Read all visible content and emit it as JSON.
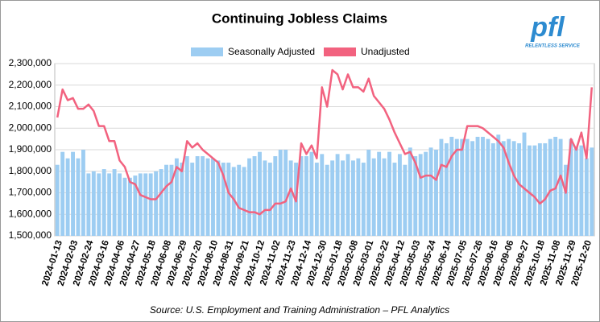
{
  "chart_data": {
    "type": "bar_line",
    "title": "Continuing Jobless Claims",
    "source": "Source: U.S. Employment and Training Administration – PFL Analytics",
    "logo": {
      "text": "pfl",
      "tagline": "RELENTLESS SERVICE"
    },
    "legend_position": "top",
    "grid": true,
    "categories": [
      "2024-01-13",
      null,
      null,
      "2024-02-03",
      null,
      null,
      "2024-02-24",
      null,
      null,
      "2024-03-16",
      null,
      null,
      "2024-04-06",
      null,
      null,
      "2024-04-27",
      null,
      null,
      "2024-05-18",
      null,
      null,
      "2024-06-08",
      null,
      null,
      "2024-06-29",
      null,
      null,
      "2024-07-20",
      null,
      null,
      "2024-08-10",
      null,
      null,
      "2024-08-31",
      null,
      null,
      "2024-09-21",
      null,
      null,
      "2024-10-12",
      null,
      null,
      "2024-11-02",
      null,
      null,
      "2024-11-23",
      null,
      null,
      "2024-12-14",
      null,
      null,
      "2024-12-30",
      null,
      null,
      "2025-01-18",
      null,
      null,
      "2025-02-08",
      null,
      null,
      "2025-03-01",
      null,
      null,
      "2025-03-22",
      null,
      null,
      "2025-04-12",
      null,
      null,
      "2025-05-03",
      null,
      null,
      "2025-05-24",
      null,
      null,
      "2025-06-14",
      null,
      null,
      "2025-07-05",
      null,
      null,
      "2025-07-26",
      null,
      null,
      "2025-08-16",
      null,
      null,
      "2025-09-06",
      null,
      null,
      "2025-09-27",
      null,
      null,
      "2025-10-18",
      null,
      null,
      "2025-11-08",
      null,
      null,
      "2025-11-29",
      null,
      null,
      "2025-12-20",
      null
    ],
    "series": [
      {
        "name": "Seasonally Adjusted",
        "type": "bar",
        "color": "#9dcdf2",
        "values": [
          1830000,
          1890000,
          1860000,
          1890000,
          1860000,
          1900000,
          1790000,
          1800000,
          1790000,
          1810000,
          1790000,
          1810000,
          1790000,
          1770000,
          1770000,
          1780000,
          1790000,
          1790000,
          1790000,
          1800000,
          1810000,
          1830000,
          1830000,
          1860000,
          1840000,
          1870000,
          1840000,
          1870000,
          1870000,
          1860000,
          1860000,
          1850000,
          1840000,
          1840000,
          1820000,
          1830000,
          1820000,
          1860000,
          1870000,
          1890000,
          1850000,
          1840000,
          1870000,
          1900000,
          1900000,
          1850000,
          1840000,
          1870000,
          1870000,
          1890000,
          1840000,
          1880000,
          1830000,
          1850000,
          1880000,
          1850000,
          1880000,
          1850000,
          1860000,
          1840000,
          1900000,
          1860000,
          1890000,
          1860000,
          1890000,
          1840000,
          1880000,
          1830000,
          1910000,
          1870000,
          1880000,
          1890000,
          1910000,
          1900000,
          1950000,
          1930000,
          1960000,
          1950000,
          1950000,
          1950000,
          1940000,
          1960000,
          1960000,
          1950000,
          1930000,
          1970000,
          1940000,
          1950000,
          1940000,
          1930000,
          1980000,
          1920000,
          1920000,
          1930000,
          1930000,
          1950000,
          1960000,
          1950000,
          1830000,
          1950000,
          1910000,
          1920000,
          1860000,
          1910000
        ]
      },
      {
        "name": "Unadjusted",
        "type": "line",
        "color": "#f2627f",
        "values": [
          2050000,
          2180000,
          2130000,
          2140000,
          2090000,
          2090000,
          2110000,
          2080000,
          2010000,
          2010000,
          1940000,
          1940000,
          1850000,
          1820000,
          1750000,
          1740000,
          1690000,
          1680000,
          1670000,
          1670000,
          1700000,
          1730000,
          1750000,
          1820000,
          1800000,
          1940000,
          1910000,
          1930000,
          1900000,
          1880000,
          1860000,
          1840000,
          1780000,
          1700000,
          1670000,
          1630000,
          1620000,
          1610000,
          1610000,
          1600000,
          1620000,
          1620000,
          1650000,
          1650000,
          1660000,
          1720000,
          1660000,
          1930000,
          1880000,
          1920000,
          1860000,
          2190000,
          2100000,
          2270000,
          2250000,
          2180000,
          2250000,
          2190000,
          2190000,
          2170000,
          2230000,
          2150000,
          2120000,
          2090000,
          2040000,
          1980000,
          1930000,
          1880000,
          1890000,
          1840000,
          1770000,
          1780000,
          1780000,
          1760000,
          1830000,
          1820000,
          1870000,
          1900000,
          1900000,
          2010000,
          2010000,
          2010000,
          2000000,
          1980000,
          1960000,
          1940000,
          1910000,
          1840000,
          1780000,
          1740000,
          1720000,
          1700000,
          1680000,
          1650000,
          1670000,
          1710000,
          1720000,
          1780000,
          1700000,
          1950000,
          1900000,
          1980000,
          1860000,
          2190000
        ]
      }
    ],
    "ylim": [
      1500000,
      2300000
    ],
    "yticks": [
      {
        "value": 1500000,
        "label": "1,500,000"
      },
      {
        "value": 1600000,
        "label": "1,600,000"
      },
      {
        "value": 1700000,
        "label": "1,700,000"
      },
      {
        "value": 1800000,
        "label": "1,800,000"
      },
      {
        "value": 1900000,
        "label": "1,900,000"
      },
      {
        "value": 2000000,
        "label": "2,000,000"
      },
      {
        "value": 2100000,
        "label": "2,100,000"
      },
      {
        "value": 2200000,
        "label": "2,200,000"
      },
      {
        "value": 2300000,
        "label": "2,300,000"
      }
    ]
  }
}
